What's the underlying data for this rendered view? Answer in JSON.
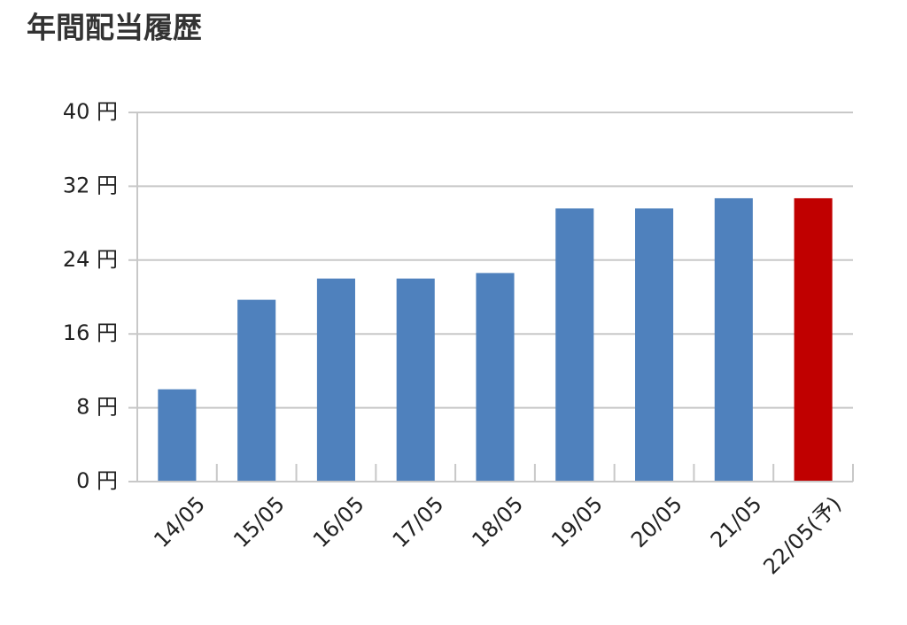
{
  "chart_data": {
    "type": "bar",
    "title": "年間配当履歴",
    "categories": [
      "14/05",
      "15/05",
      "16/05",
      "17/05",
      "18/05",
      "19/05",
      "20/05",
      "21/05",
      "22/05(予)"
    ],
    "values": [
      10,
      19.7,
      22,
      22,
      22.6,
      29.6,
      29.6,
      30.7,
      30.7
    ],
    "colors": [
      "#4f81bd",
      "#4f81bd",
      "#4f81bd",
      "#4f81bd",
      "#4f81bd",
      "#4f81bd",
      "#4f81bd",
      "#4f81bd",
      "#c00000"
    ],
    "ylim": [
      0,
      40
    ],
    "yticks": [
      {
        "value": 0,
        "label": "0 円"
      },
      {
        "value": 8,
        "label": "8 円"
      },
      {
        "value": 16,
        "label": "16 円"
      },
      {
        "value": 24,
        "label": "24 円"
      },
      {
        "value": 32,
        "label": "32 円"
      },
      {
        "value": 40,
        "label": "40 円"
      }
    ],
    "grid": true
  }
}
